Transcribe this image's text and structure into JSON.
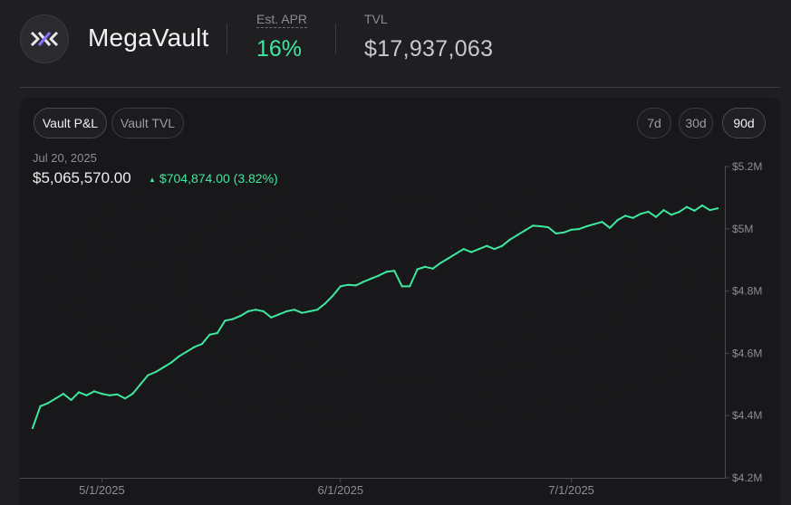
{
  "header": {
    "vault_name": "MegaVault",
    "apr_label": "Est. APR",
    "apr_value": "16%",
    "tvl_label": "TVL",
    "tvl_value": "$17,937,063"
  },
  "tabs": [
    {
      "label": "Vault P&L",
      "active": true
    },
    {
      "label": "Vault TVL",
      "active": false
    }
  ],
  "ranges": [
    {
      "label": "7d",
      "active": false
    },
    {
      "label": "30d",
      "active": false
    },
    {
      "label": "90d",
      "active": true
    }
  ],
  "hover": {
    "date": "Jul 20, 2025",
    "value": "$5,065,570.00",
    "change": "$704,874.00 (3.82%)"
  },
  "colors": {
    "accent": "#3ee89f",
    "background": "#1f1f21",
    "panel": "#18181a"
  },
  "icons": {
    "logo": "megavault-logo-icon",
    "change_arrow": "up-triangle-icon"
  },
  "chart_data": {
    "type": "line",
    "grid": false,
    "x_labels": [
      "5/1/2025",
      "6/1/2025",
      "7/1/2025"
    ],
    "y_ticks": [
      4200000,
      4400000,
      4600000,
      4800000,
      5000000,
      5200000
    ],
    "y_tick_labels": [
      "$4.2M",
      "$4.4M",
      "$4.6M",
      "$4.8M",
      "$5M",
      "$5.2M"
    ],
    "xlim": [
      "2025-04-22",
      "2025-07-20"
    ],
    "ylim": [
      4200000,
      5200000
    ],
    "series": [
      {
        "x": [
          "2025-04-22",
          "2025-04-23",
          "2025-04-24",
          "2025-04-25",
          "2025-04-26",
          "2025-04-27",
          "2025-04-28",
          "2025-04-29",
          "2025-04-30",
          "2025-05-01",
          "2025-05-02",
          "2025-05-03",
          "2025-05-04",
          "2025-05-05",
          "2025-05-06",
          "2025-05-07",
          "2025-05-08",
          "2025-05-09",
          "2025-05-10",
          "2025-05-11",
          "2025-05-12",
          "2025-05-13",
          "2025-05-14",
          "2025-05-15",
          "2025-05-16",
          "2025-05-17",
          "2025-05-18",
          "2025-05-19",
          "2025-05-20",
          "2025-05-21",
          "2025-05-22",
          "2025-05-23",
          "2025-05-24",
          "2025-05-25",
          "2025-05-26",
          "2025-05-27",
          "2025-05-28",
          "2025-05-29",
          "2025-05-30",
          "2025-05-31",
          "2025-06-01",
          "2025-06-02",
          "2025-06-03",
          "2025-06-04",
          "2025-06-05",
          "2025-06-06",
          "2025-06-07",
          "2025-06-08",
          "2025-06-09",
          "2025-06-10",
          "2025-06-11",
          "2025-06-12",
          "2025-06-13",
          "2025-06-14",
          "2025-06-15",
          "2025-06-16",
          "2025-06-17",
          "2025-06-18",
          "2025-06-19",
          "2025-06-20",
          "2025-06-21",
          "2025-06-22",
          "2025-06-23",
          "2025-06-24",
          "2025-06-25",
          "2025-06-26",
          "2025-06-27",
          "2025-06-28",
          "2025-06-29",
          "2025-06-30",
          "2025-07-01",
          "2025-07-02",
          "2025-07-03",
          "2025-07-04",
          "2025-07-05",
          "2025-07-06",
          "2025-07-07",
          "2025-07-08",
          "2025-07-09",
          "2025-07-10",
          "2025-07-11",
          "2025-07-12",
          "2025-07-13",
          "2025-07-14",
          "2025-07-15",
          "2025-07-16",
          "2025-07-17",
          "2025-07-18",
          "2025-07-19",
          "2025-07-20"
        ],
        "y": [
          4360000,
          4430000,
          4440000,
          4455000,
          4470000,
          4450000,
          4475000,
          4465000,
          4478000,
          4470000,
          4465000,
          4468000,
          4455000,
          4470000,
          4500000,
          4530000,
          4540000,
          4555000,
          4570000,
          4590000,
          4605000,
          4620000,
          4630000,
          4660000,
          4665000,
          4705000,
          4710000,
          4720000,
          4735000,
          4740000,
          4735000,
          4715000,
          4725000,
          4735000,
          4740000,
          4730000,
          4735000,
          4740000,
          4760000,
          4785000,
          4815000,
          4820000,
          4818000,
          4830000,
          4840000,
          4850000,
          4862000,
          4865000,
          4815000,
          4815000,
          4870000,
          4878000,
          4872000,
          4890000,
          4905000,
          4920000,
          4935000,
          4925000,
          4935000,
          4945000,
          4935000,
          4945000,
          4965000,
          4980000,
          4995000,
          5010000,
          5008000,
          5005000,
          4985000,
          4988000,
          4997000,
          4999000,
          5008000,
          5015000,
          5022000,
          5003000,
          5028000,
          5042000,
          5035000,
          5048000,
          5055000,
          5038000,
          5060000,
          5045000,
          5054000,
          5070000,
          5058000,
          5075000,
          5060000,
          5065570
        ]
      }
    ]
  }
}
